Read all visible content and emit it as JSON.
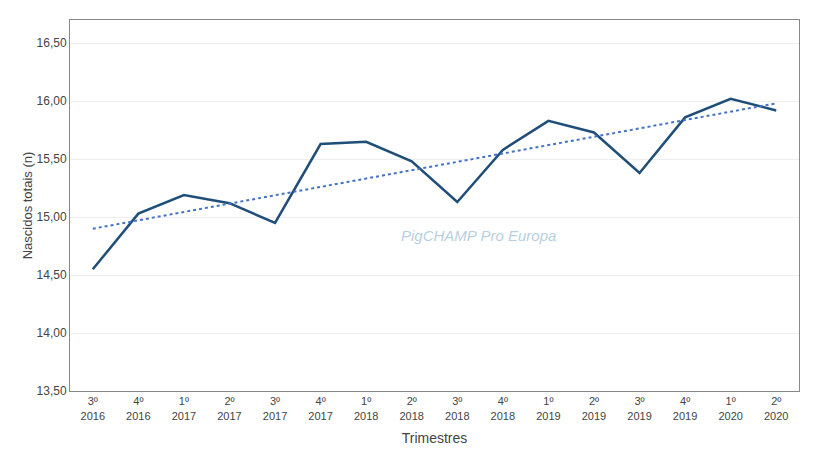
{
  "chart_data": {
    "type": "line",
    "xlabel": "Trimestres",
    "ylabel": "Nascidos totais (n)",
    "categories": [
      "3º\n2016",
      "4º\n2016",
      "1º\n2017",
      "2º\n2017",
      "3º\n2017",
      "4º\n2017",
      "1º\n2018",
      "2º\n2018",
      "3º\n2018",
      "4º\n2018",
      "1º\n2019",
      "2º\n2019",
      "3º\n2019",
      "4º\n2019",
      "1º\n2020",
      "2º\n2020"
    ],
    "series": [
      {
        "color": "#1f4e79",
        "line_style": "solid",
        "values": [
          14.55,
          15.03,
          15.19,
          15.12,
          14.95,
          15.63,
          15.65,
          15.48,
          15.13,
          15.58,
          15.83,
          15.73,
          15.38,
          15.86,
          16.02,
          15.92
        ]
      },
      {
        "color": "#4472c4",
        "line_style": "dotted",
        "values": [
          14.8999,
          14.972,
          15.0441,
          15.1162,
          15.1883,
          15.2604,
          15.3325,
          15.4046,
          15.4767,
          15.5488,
          15.6209,
          15.693,
          15.7651,
          15.8372,
          15.9093,
          15.9814
        ]
      }
    ],
    "ylim": [
      13.5,
      16.7
    ],
    "yticks": [
      {
        "value": 13.5,
        "label": "13,50"
      },
      {
        "value": 14,
        "label": "14,00"
      },
      {
        "value": 14.5,
        "label": "14,50"
      },
      {
        "value": 15,
        "label": "15,00"
      },
      {
        "value": 15.5,
        "label": "15,50"
      },
      {
        "value": 16,
        "label": "16,00"
      },
      {
        "value": 16.5,
        "label": "16,50"
      }
    ],
    "grid": true,
    "annotations": [
      {
        "text": "PigCHAMP Pro Europa",
        "color": "#b8cfe0"
      }
    ]
  }
}
